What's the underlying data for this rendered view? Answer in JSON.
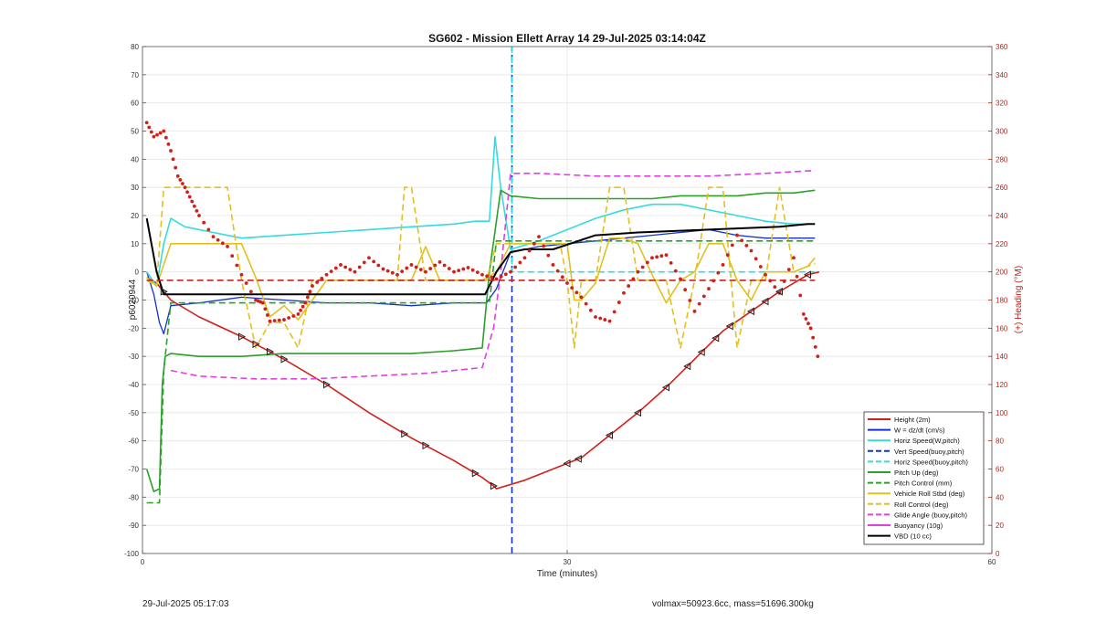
{
  "footer": {
    "timestamp": "29-Jul-2025 05:17:03",
    "summary": "volmax=50923.6cc, mass=51696.300kg"
  },
  "chart_data": {
    "type": "line",
    "title": "SG602 - Mission Ellett Array 14 29-Jul-2025 03:14:04Z",
    "xlabel": "Time (minutes)",
    "ylabel": "p6020944",
    "y2label": "(+) Heading (°M)",
    "xlim": [
      0,
      60
    ],
    "ylim": [
      -100,
      80
    ],
    "y2lim": [
      0,
      360
    ],
    "xticks": [
      "0",
      "30",
      "60"
    ],
    "yticks": [
      "80",
      "70",
      "60",
      "50",
      "40",
      "30",
      "20",
      "10",
      "0",
      "-10",
      "-20",
      "-30",
      "-40",
      "-50",
      "-60",
      "-70",
      "-80",
      "-90",
      "-100"
    ],
    "y2ticks": [
      "360",
      "340",
      "320",
      "300",
      "280",
      "260",
      "240",
      "220",
      "200",
      "180",
      "160",
      "140",
      "120",
      "100",
      "80",
      "60",
      "40",
      "20",
      "0"
    ],
    "grid": true,
    "legend_position": "bottom-right",
    "apogee_time": 26.1,
    "series": [
      {
        "name": "Height (2m)",
        "color": "#d0201a",
        "style": "solid",
        "width": 1.6,
        "x": [
          0.3,
          1,
          2,
          4,
          7,
          10,
          13,
          16,
          19,
          22,
          24,
          24.8,
          25,
          27,
          29,
          31,
          33,
          35,
          37,
          39,
          41,
          43,
          45,
          47,
          47.8
        ],
        "y": [
          -2,
          -4,
          -10,
          -16,
          -23,
          -31,
          -40,
          -50,
          -59,
          -67,
          -73,
          -76,
          -77,
          -74,
          -70,
          -66,
          -58,
          -50,
          -41,
          -31,
          -21,
          -14,
          -7,
          -1,
          0
        ]
      },
      {
        "name": "W = dz/dt (cm/s)",
        "color": "#1531c9",
        "style": "solid",
        "width": 1.3,
        "x": [
          0.3,
          0.8,
          1.2,
          1.5,
          2,
          4,
          7,
          10,
          13,
          16,
          19,
          22,
          24.3,
          25,
          26,
          28,
          30,
          32,
          34,
          36,
          38,
          40,
          42,
          44,
          46,
          47.5
        ],
        "y": [
          0,
          -8,
          -18,
          -22,
          -12,
          -11,
          -9,
          -10,
          -11,
          -11,
          -12,
          -11,
          -11,
          -6,
          7,
          9,
          10,
          11,
          12,
          13,
          14,
          15,
          13,
          12,
          12,
          12
        ]
      },
      {
        "name": "Horiz Speed(W,pitch)",
        "color": "#34dbe0",
        "style": "solid",
        "width": 1.6,
        "x": [
          0.3,
          1,
          1.5,
          2,
          3,
          5,
          7,
          10,
          13,
          16,
          19,
          22,
          23.5,
          24.5,
          24.9,
          25.3,
          26,
          28,
          30,
          32,
          34,
          36,
          38,
          40,
          42,
          44,
          46,
          47.5
        ],
        "y": [
          0,
          -5,
          10,
          19,
          16,
          14,
          12,
          13,
          14,
          15,
          16,
          17,
          18,
          18,
          48,
          30,
          8,
          11,
          15,
          19,
          22,
          24,
          24,
          22,
          20,
          18,
          17,
          17
        ]
      },
      {
        "name": "Vert Speed(buoy,pitch)",
        "color": "#1531c9",
        "style": "dashed",
        "width": 1.6,
        "x": [
          26.1,
          26.1
        ],
        "y": [
          -100,
          80
        ]
      },
      {
        "name": "Horiz Speed(buoy,pitch)",
        "color": "#34dbe0",
        "style": "dashed",
        "width": 1.6,
        "x": [
          26.1,
          26.1,
          28,
          47.5
        ],
        "y": [
          80,
          0,
          0,
          0
        ]
      },
      {
        "name": "Pitch Up (deg)",
        "color": "#2aa02a",
        "style": "solid",
        "width": 1.6,
        "x": [
          0.3,
          0.8,
          1.2,
          1.4,
          1.6,
          2,
          4,
          7,
          10,
          13,
          16,
          19,
          22,
          24,
          24.5,
          25.3,
          26,
          28,
          30,
          32,
          34,
          36,
          38,
          40,
          42,
          44,
          46,
          47.5
        ],
        "y": [
          -70,
          -78,
          -77,
          -40,
          -30,
          -29,
          -30,
          -30,
          -29,
          -29,
          -29,
          -29,
          -28,
          -27,
          0,
          29,
          27,
          26,
          26,
          26,
          26,
          26,
          27,
          27,
          27,
          28,
          28,
          29
        ]
      },
      {
        "name": "Pitch Control (mm)",
        "color": "#2aa02a",
        "style": "dashed",
        "width": 1.6,
        "x": [
          0.3,
          1.2,
          1.5,
          2,
          24.5,
          25,
          47.5
        ],
        "y": [
          -82,
          -82,
          -35,
          -11,
          -11,
          11,
          11
        ]
      },
      {
        "name": "Vehicle Roll Stbd (deg)",
        "color": "#e2c020",
        "style": "solid",
        "width": 1.6,
        "x": [
          0.3,
          1,
          2,
          3,
          5,
          7,
          8,
          9,
          10,
          11,
          13,
          16,
          19,
          20,
          21,
          22,
          24,
          25,
          26,
          27,
          28,
          29,
          30,
          30.5,
          31,
          32,
          33,
          34,
          35,
          36,
          37,
          38,
          39,
          40,
          41,
          42,
          43,
          44,
          45,
          46,
          47,
          47.5
        ],
        "y": [
          -2,
          -5,
          10,
          10,
          10,
          10,
          -2,
          -16,
          -12,
          -17,
          -3,
          -3,
          -3,
          9,
          -3,
          -3,
          -3,
          0,
          10,
          10,
          10,
          10,
          10,
          -10,
          -10,
          -4,
          12,
          12,
          10,
          -1,
          -11,
          -3,
          0,
          10,
          10,
          -3,
          -10,
          0,
          0,
          0,
          2,
          5
        ]
      },
      {
        "name": "Roll Control (deg)",
        "color": "#e2c020",
        "style": "dashed",
        "width": 1.6,
        "x": [
          0.3,
          1,
          1.5,
          2,
          6,
          7,
          8,
          9,
          10,
          11,
          12,
          15,
          18,
          18.5,
          19,
          20,
          21,
          24,
          24.3,
          25,
          26,
          28,
          29.5,
          30,
          30.5,
          31,
          32,
          33,
          34,
          35,
          37,
          38,
          39,
          40,
          41,
          42,
          43,
          44,
          45,
          46,
          47.5
        ],
        "y": [
          -3,
          -5,
          30,
          30,
          30,
          -3,
          -27,
          -18,
          -18,
          -27,
          -3,
          -3,
          -3,
          30,
          30,
          -3,
          -3,
          -3,
          -3,
          10,
          10,
          10,
          10,
          -3,
          -27,
          -3,
          -3,
          30,
          30,
          -3,
          -3,
          -27,
          -3,
          30,
          30,
          -27,
          -3,
          -3,
          30,
          0,
          3
        ]
      },
      {
        "name": "Glide Angle (buoy,pitch)",
        "color": "#e040e0",
        "style": "dashed",
        "width": 1.6,
        "x": [
          2,
          4,
          8,
          12,
          16,
          20,
          24,
          24.8,
          25.3,
          26,
          28,
          32,
          36,
          40,
          44,
          47.5
        ],
        "y": [
          -35,
          -37,
          -38,
          -38,
          -37,
          -36,
          -34,
          -20,
          0,
          35,
          35,
          34,
          34,
          34,
          35,
          36
        ]
      },
      {
        "name": "Buoyancy (10g)",
        "color": "#e040e0",
        "style": "solid",
        "width": 1.6,
        "x": [],
        "y": []
      },
      {
        "name": "VBD (10 cc)",
        "color": "#000000",
        "style": "solid",
        "width": 2,
        "x": [
          0.3,
          1,
          1.5,
          2,
          10,
          20,
          24.2,
          25,
          26,
          27,
          29,
          32,
          35,
          40,
          45,
          47,
          47.5
        ],
        "y": [
          19,
          0,
          -8,
          -8,
          -8,
          -8,
          -8,
          0,
          7,
          8,
          8,
          13,
          14,
          15,
          16,
          17,
          17
        ]
      },
      {
        "name": "Heading ref",
        "color": "#d0201a",
        "style": "dashed",
        "width": 1.6,
        "axis": "right",
        "x": [
          0.3,
          47.5
        ],
        "y": [
          194,
          194
        ]
      },
      {
        "name": "Heading (°M)",
        "color": "#d0201a",
        "style": "dots",
        "axis": "right",
        "x": [
          0.3,
          0.8,
          1.5,
          2,
          2.5,
          3,
          3.5,
          4,
          5,
          6,
          7,
          8,
          8.5,
          9,
          10,
          11,
          11.5,
          12,
          13,
          14,
          15,
          16,
          17,
          18,
          19,
          20,
          21,
          22,
          23,
          24,
          25,
          26,
          27,
          28,
          29,
          30,
          31,
          32,
          33,
          34,
          35,
          36,
          37,
          38,
          39,
          40,
          41,
          42,
          43,
          44,
          45,
          46,
          46.7,
          47.2,
          47.7
        ],
        "y": [
          306,
          296,
          300,
          286,
          268,
          260,
          250,
          240,
          225,
          218,
          198,
          180,
          178,
          165,
          166,
          170,
          178,
          190,
          198,
          205,
          200,
          210,
          202,
          198,
          205,
          200,
          207,
          200,
          203,
          198,
          195,
          200,
          210,
          225,
          205,
          192,
          182,
          168,
          165,
          185,
          200,
          210,
          212,
          195,
          172,
          188,
          205,
          226,
          215,
          198,
          185,
          210,
          170,
          160,
          140
        ]
      }
    ]
  }
}
